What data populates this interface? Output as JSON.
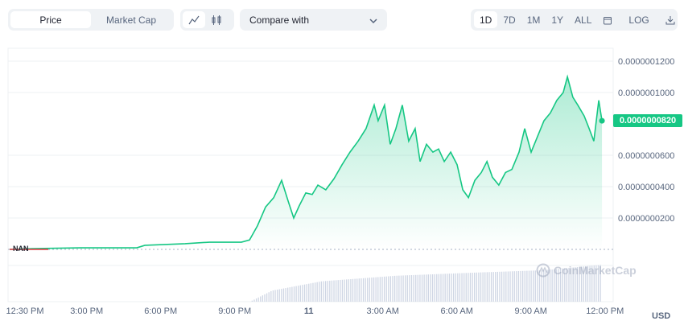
{
  "tabs": [
    {
      "label": "Price",
      "active": true
    },
    {
      "label": "Market Cap",
      "active": false
    }
  ],
  "chart_type_icons": [
    "line-chart-icon",
    "candlestick-icon"
  ],
  "compare": {
    "label": "Compare with"
  },
  "ranges": [
    "1D",
    "7D",
    "1M",
    "1Y",
    "ALL"
  ],
  "range_active": "1D",
  "log_label": "LOG",
  "currency": "USD",
  "nan_label": "NAN",
  "current_price": "0.0000000820",
  "watermark": "CoinMarketCap",
  "colors": {
    "line": "#16c784",
    "start": "#ea3943",
    "volume": "#cfd6e4"
  },
  "chart_data": {
    "type": "area",
    "x_unit": "hours since 12:30 PM",
    "y_unit": "USD x 1e-9",
    "x_ticks": [
      {
        "t": 0,
        "label": "12:30 PM"
      },
      {
        "t": 2.5,
        "label": "3:00 PM"
      },
      {
        "t": 5.5,
        "label": "6:00 PM"
      },
      {
        "t": 8.5,
        "label": "9:00 PM"
      },
      {
        "t": 11.5,
        "label": "11"
      },
      {
        "t": 14.5,
        "label": "3:00 AM"
      },
      {
        "t": 17.5,
        "label": "6:00 AM"
      },
      {
        "t": 20.5,
        "label": "9:00 AM"
      },
      {
        "t": 23.5,
        "label": "12:00 PM"
      }
    ],
    "y_ticks": [
      {
        "v": 120,
        "label": "0.0000001200"
      },
      {
        "v": 100,
        "label": "0.0000001000"
      },
      {
        "v": 60,
        "label": "0.0000000600"
      },
      {
        "v": 40,
        "label": "0.0000000400"
      },
      {
        "v": 20,
        "label": "0.0000000200"
      }
    ],
    "points": [
      [
        -0.62,
        0
      ],
      [
        0.29,
        0.5
      ],
      [
        2.25,
        1
      ],
      [
        4.53,
        1
      ],
      [
        4.86,
        2.6
      ],
      [
        6.49,
        3.6
      ],
      [
        7.47,
        4.6
      ],
      [
        8.77,
        4.6
      ],
      [
        9.1,
        6
      ],
      [
        9.42,
        15
      ],
      [
        9.75,
        27
      ],
      [
        10.08,
        33
      ],
      [
        10.4,
        44
      ],
      [
        10.66,
        31
      ],
      [
        10.89,
        20
      ],
      [
        11.12,
        28
      ],
      [
        11.38,
        36
      ],
      [
        11.64,
        35
      ],
      [
        11.87,
        41
      ],
      [
        12.19,
        38
      ],
      [
        12.52,
        45
      ],
      [
        12.85,
        54
      ],
      [
        13.17,
        62
      ],
      [
        13.5,
        69
      ],
      [
        13.82,
        77
      ],
      [
        14.15,
        92
      ],
      [
        14.31,
        82
      ],
      [
        14.57,
        92
      ],
      [
        14.8,
        67
      ],
      [
        15.03,
        77
      ],
      [
        15.29,
        92
      ],
      [
        15.55,
        69
      ],
      [
        15.81,
        77
      ],
      [
        16.01,
        56
      ],
      [
        16.27,
        67
      ],
      [
        16.53,
        62
      ],
      [
        16.76,
        64
      ],
      [
        16.99,
        56
      ],
      [
        17.25,
        62
      ],
      [
        17.51,
        54
      ],
      [
        17.74,
        38
      ],
      [
        17.97,
        33
      ],
      [
        18.23,
        44
      ],
      [
        18.49,
        49
      ],
      [
        18.72,
        56
      ],
      [
        18.94,
        46
      ],
      [
        19.2,
        41
      ],
      [
        19.47,
        49
      ],
      [
        19.73,
        51
      ],
      [
        20.02,
        62
      ],
      [
        20.25,
        77
      ],
      [
        20.51,
        62
      ],
      [
        20.77,
        72
      ],
      [
        21.03,
        82
      ],
      [
        21.29,
        87
      ],
      [
        21.55,
        95
      ],
      [
        21.81,
        100
      ],
      [
        21.98,
        110
      ],
      [
        22.2,
        97
      ],
      [
        22.4,
        92
      ],
      [
        22.66,
        85
      ],
      [
        22.86,
        77
      ],
      [
        23.05,
        69
      ],
      [
        23.25,
        95
      ],
      [
        23.38,
        82
      ]
    ],
    "volume_relative": [
      [
        9.1,
        0
      ],
      [
        10,
        0.3
      ],
      [
        12,
        0.55
      ],
      [
        15,
        0.7
      ],
      [
        18,
        0.78
      ],
      [
        21,
        0.85
      ],
      [
        23.38,
        1
      ]
    ]
  }
}
